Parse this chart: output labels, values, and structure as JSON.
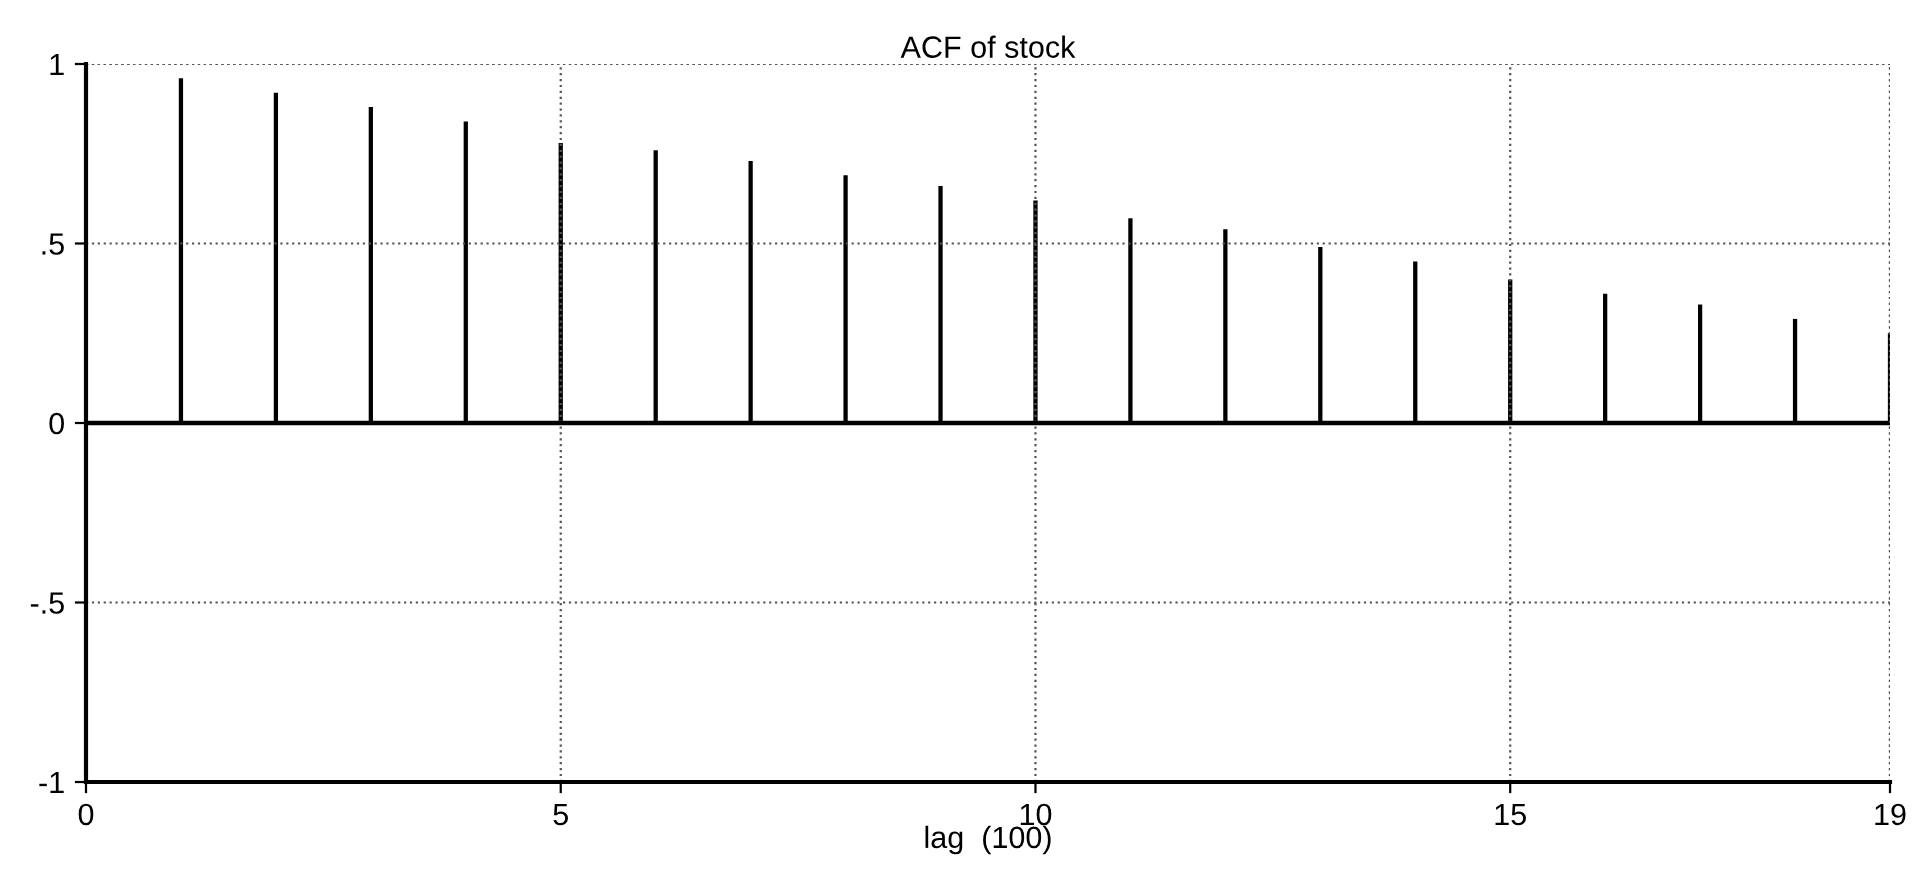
{
  "chart_data": {
    "type": "bar",
    "title": "ACF of stock",
    "xlabel": "lag  (100)",
    "x": [
      1,
      2,
      3,
      4,
      5,
      6,
      7,
      8,
      9,
      10,
      11,
      12,
      13,
      14,
      15,
      16,
      17,
      18,
      19
    ],
    "values": [
      0.96,
      0.92,
      0.88,
      0.84,
      0.78,
      0.76,
      0.73,
      0.69,
      0.66,
      0.62,
      0.57,
      0.54,
      0.49,
      0.45,
      0.4,
      0.36,
      0.33,
      0.29,
      0.25
    ],
    "color": "#000000",
    "xlim": [
      0,
      19
    ],
    "xticks": [
      0,
      5,
      10,
      15,
      19
    ],
    "ylim": [
      -1,
      1
    ],
    "yticks": [
      -1,
      {
        "value": -0.5,
        "label": "-.5"
      },
      0,
      {
        "value": 0.5,
        "label": ".5"
      },
      1
    ],
    "grid": true
  }
}
